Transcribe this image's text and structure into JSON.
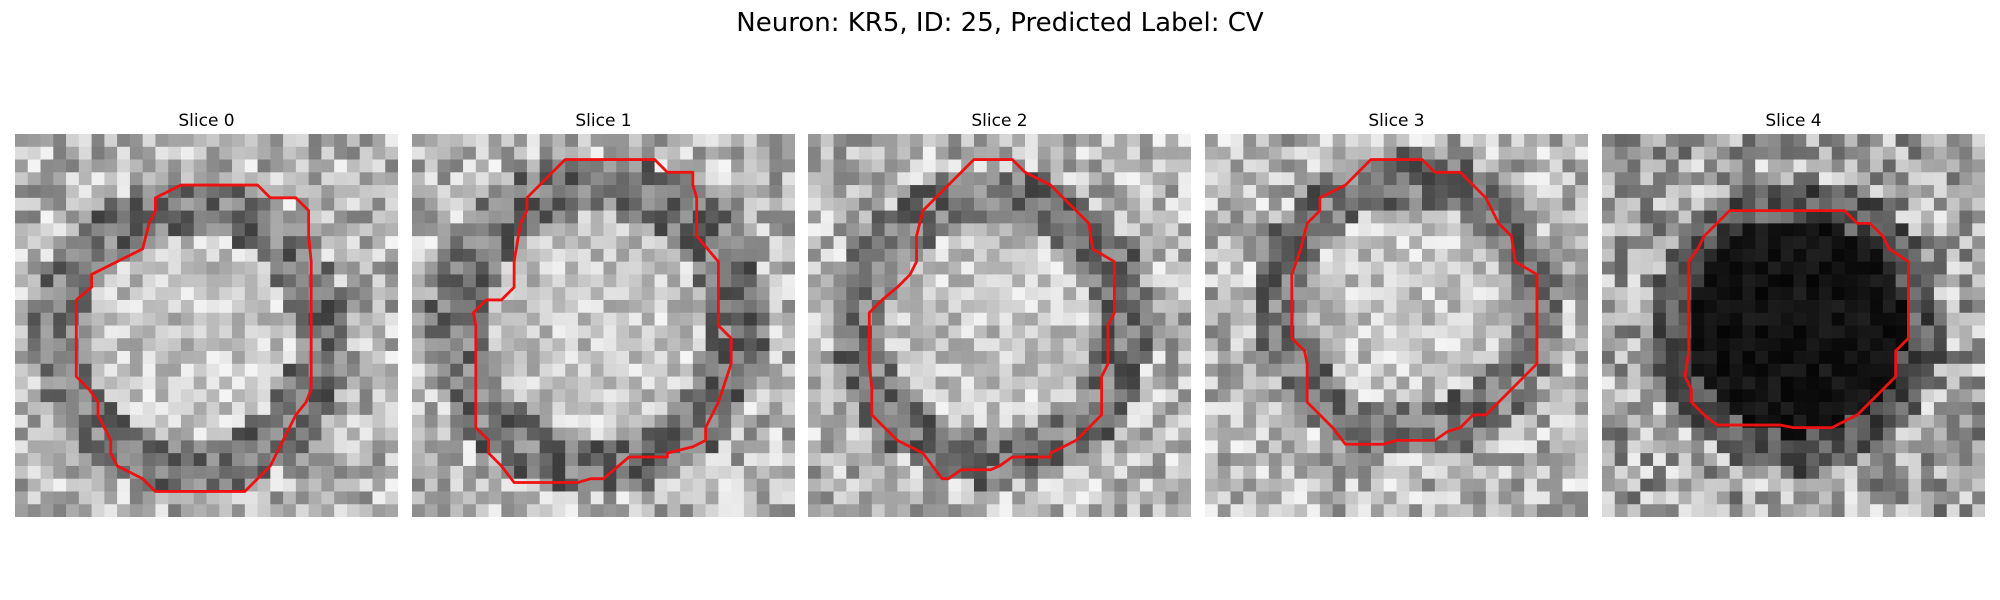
{
  "figure": {
    "title": "Neuron: KR5, ID: 25, Predicted Label: CV"
  },
  "panels": [
    {
      "title": "Slice 0",
      "tone": "light",
      "seed": 11
    },
    {
      "title": "Slice 1",
      "tone": "light",
      "seed": 23
    },
    {
      "title": "Slice 2",
      "tone": "light",
      "seed": 37
    },
    {
      "title": "Slice 3",
      "tone": "light",
      "seed": 41
    },
    {
      "title": "Slice 4",
      "tone": "dark",
      "seed": 53
    }
  ],
  "colors": {
    "contour": "#ee1111",
    "background": "#ffffff"
  }
}
